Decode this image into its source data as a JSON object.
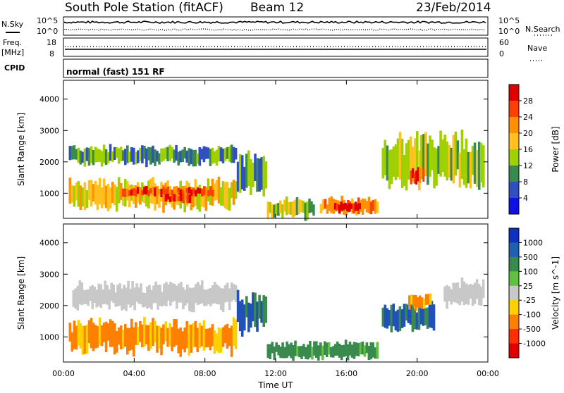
{
  "header": {
    "station": "South Pole Station (fitACF)",
    "beam": "Beam 12",
    "date": "23/Feb/2014"
  },
  "noise_panel": {
    "left_label": "N.Sky",
    "left_ticks": [
      "10^5",
      "10^0"
    ],
    "right_ticks": [
      "10^5",
      "10^0"
    ],
    "right_label": "N.Search"
  },
  "freq_panel": {
    "left_label_1": "Freq.",
    "left_label_2": "[MHz]",
    "left_ticks": [
      "18",
      "8"
    ],
    "right_ticks": [
      "60",
      "0"
    ],
    "right_label": "Nave"
  },
  "cpid_panel": {
    "label": "CPID",
    "mode": "normal (fast) 151 RF"
  },
  "chart_data": [
    {
      "type": "heatmap",
      "name": "power",
      "ylabel": "Slant Range [km]",
      "yticks": [
        "4000",
        "3000",
        "2000",
        "1000"
      ],
      "ylim": [
        200,
        4600
      ],
      "xlim": [
        0,
        24
      ],
      "colorbar_label": "Power [dB]",
      "colorbar_ticks": [
        "28",
        "24",
        "20",
        "16",
        "12",
        "8",
        "4"
      ],
      "colorbar_colors": [
        "#e00000",
        "#ff4000",
        "#ff9000",
        "#ffc020",
        "#a0d000",
        "#3a8a50",
        "#3050c0",
        "#1010e0"
      ],
      "patches": [
        {
          "t0": 0.3,
          "t1": 9.8,
          "r0": 1900,
          "r1": 2500,
          "level": 2
        },
        {
          "t0": 0.3,
          "t1": 9.8,
          "r0": 500,
          "r1": 1400,
          "level": 4
        },
        {
          "t0": 3.3,
          "t1": 8.5,
          "r0": 900,
          "r1": 1200,
          "level": 6
        },
        {
          "t0": 5.6,
          "t1": 7.2,
          "r0": 700,
          "r1": 1000,
          "level": 6
        },
        {
          "t0": 9.8,
          "t1": 11.5,
          "r0": 1000,
          "r1": 2300,
          "level": 2
        },
        {
          "t0": 11.5,
          "t1": 14.2,
          "r0": 200,
          "r1": 800,
          "level": 3
        },
        {
          "t0": 14.5,
          "t1": 17.8,
          "r0": 300,
          "r1": 850,
          "level": 5
        },
        {
          "t0": 15.3,
          "t1": 16.8,
          "r0": 400,
          "r1": 700,
          "level": 7
        },
        {
          "t0": 18.0,
          "t1": 23.8,
          "r0": 1200,
          "r1": 2800,
          "level": 3
        },
        {
          "t0": 19.6,
          "t1": 20.4,
          "r0": 1300,
          "r1": 1800,
          "level": 6
        }
      ]
    },
    {
      "type": "heatmap",
      "name": "velocity",
      "ylabel": "Slant Range [km]",
      "yticks": [
        "4000",
        "3000",
        "2000",
        "1000"
      ],
      "ylim": [
        200,
        4600
      ],
      "xlim": [
        0,
        24
      ],
      "xticks": [
        "00:00",
        "04:00",
        "08:00",
        "12:00",
        "16:00",
        "20:00",
        "00:00"
      ],
      "xlabel": "Time UT",
      "colorbar_label": "Velocity [m s^-1]",
      "colorbar_ticks": [
        "1000",
        "500",
        "100",
        "25",
        "-25",
        "-100",
        "-500",
        "-1000"
      ],
      "colorbar_colors": [
        "#1030c0",
        "#2060b0",
        "#3a8a50",
        "#60c040",
        "#c8c8c8",
        "#ffd000",
        "#ff8000",
        "#ff3000",
        "#e00000"
      ],
      "patches": [
        {
          "t0": 0.5,
          "t1": 9.8,
          "r0": 1900,
          "r1": 2700,
          "level": "gray"
        },
        {
          "t0": 0.3,
          "t1": 9.8,
          "r0": 500,
          "r1": 1500,
          "level": "orange"
        },
        {
          "t0": 9.8,
          "t1": 11.5,
          "r0": 1200,
          "r1": 2400,
          "level": "blue"
        },
        {
          "t0": 11.5,
          "t1": 17.8,
          "r0": 300,
          "r1": 850,
          "level": "green"
        },
        {
          "t0": 18.0,
          "t1": 21.0,
          "r0": 1200,
          "r1": 2100,
          "level": "blue"
        },
        {
          "t0": 19.5,
          "t1": 20.8,
          "r0": 1900,
          "r1": 2400,
          "level": "orange"
        },
        {
          "t0": 21.5,
          "t1": 23.8,
          "r0": 2000,
          "r1": 2800,
          "level": "gray"
        }
      ]
    }
  ]
}
